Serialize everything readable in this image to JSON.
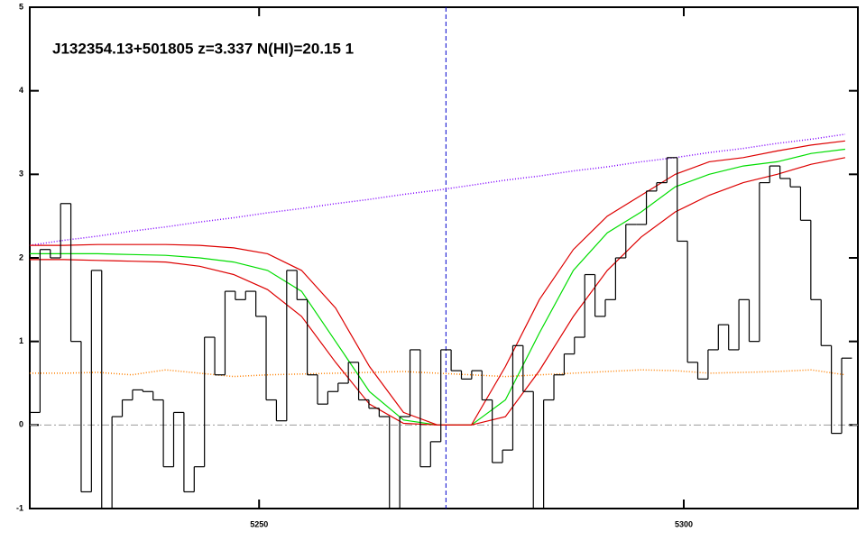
{
  "chart_data": {
    "type": "line",
    "title": "J132354.13+501805 z=3.337 N(HI)=20.15 1",
    "xlim": [
      5223.0,
      5320.5
    ],
    "ylim": [
      -1,
      5
    ],
    "xticks": [
      5250,
      5300
    ],
    "yticks": [
      -1,
      0,
      1,
      2,
      3,
      4,
      5
    ],
    "spectrum": {
      "color": "#000000",
      "bins": [
        5223.0,
        5224.21,
        5225.42,
        5226.63,
        5227.84,
        5229.05,
        5230.26,
        5231.47,
        5232.68,
        5233.89,
        5235.1,
        5236.31,
        5237.52,
        5238.73,
        5239.94,
        5241.15,
        5242.36,
        5243.57,
        5244.78,
        5245.99,
        5247.2,
        5248.41,
        5249.62,
        5250.83,
        5252.04,
        5253.25,
        5254.46,
        5255.67,
        5256.88,
        5258.09,
        5259.3,
        5260.51,
        5261.72,
        5262.93,
        5264.14,
        5265.35,
        5266.56,
        5267.77,
        5268.98,
        5270.19,
        5271.4,
        5272.61,
        5273.82,
        5275.03,
        5276.24,
        5277.45,
        5278.66,
        5279.87,
        5281.08,
        5282.29,
        5283.5,
        5284.71,
        5285.92,
        5287.13,
        5288.34,
        5289.55,
        5290.76,
        5291.97,
        5293.18,
        5294.39,
        5295.6,
        5296.81,
        5298.02,
        5299.23,
        5300.44,
        5301.65,
        5302.86,
        5304.07,
        5305.28,
        5306.49,
        5307.7,
        5308.91,
        5310.12,
        5311.33,
        5312.54,
        5313.75,
        5314.96,
        5316.17,
        5317.38,
        5318.59,
        5319.8
      ],
      "values": [
        0.15,
        2.1,
        2.0,
        2.65,
        1.0,
        -0.8,
        1.85,
        -1.0,
        0.1,
        0.3,
        0.42,
        0.4,
        0.3,
        -0.5,
        0.15,
        -0.8,
        -0.5,
        1.05,
        0.6,
        1.6,
        1.5,
        1.6,
        1.3,
        0.3,
        0.05,
        1.85,
        1.5,
        0.6,
        0.25,
        0.4,
        0.5,
        0.75,
        0.3,
        0.2,
        0.1,
        -1.0,
        0.1,
        0.9,
        -0.5,
        -0.2,
        0.9,
        0.65,
        0.55,
        0.65,
        0.3,
        -0.45,
        -0.3,
        0.95,
        0.4,
        -1.0,
        0.3,
        0.6,
        0.85,
        1.05,
        1.8,
        1.3,
        1.5,
        2.0,
        2.4,
        2.4,
        2.8,
        2.9,
        3.2,
        2.2,
        0.75,
        0.55,
        0.9,
        1.2,
        0.9,
        1.5,
        1.0,
        2.9,
        3.1,
        2.95,
        2.85,
        2.45,
        1.5,
        0.95,
        -0.1,
        0.8
      ]
    },
    "x": [
      5223,
      5227,
      5231,
      5235,
      5239,
      5243,
      5247,
      5251,
      5255,
      5259,
      5263,
      5267,
      5271,
      5275,
      5279,
      5283,
      5287,
      5291,
      5295,
      5299,
      5303,
      5307,
      5311,
      5315,
      5319
    ],
    "series": [
      {
        "color": "#ff8000",
        "style": "dotted",
        "values": [
          0.62,
          0.62,
          0.63,
          0.6,
          0.66,
          0.62,
          0.58,
          0.6,
          0.61,
          0.62,
          0.63,
          0.64,
          0.62,
          0.6,
          0.58,
          0.6,
          0.62,
          0.64,
          0.66,
          0.65,
          0.62,
          0.63,
          0.64,
          0.66,
          0.6
        ]
      },
      {
        "color": "#8000ff",
        "style": "dotted",
        "values": [
          2.15,
          2.21,
          2.26,
          2.32,
          2.37,
          2.43,
          2.48,
          2.54,
          2.59,
          2.65,
          2.7,
          2.76,
          2.81,
          2.87,
          2.93,
          2.98,
          3.04,
          3.09,
          3.15,
          3.2,
          3.26,
          3.31,
          3.37,
          3.42,
          3.48
        ]
      },
      {
        "color": "#00dd00",
        "style": "solid",
        "values": [
          2.05,
          2.05,
          2.05,
          2.04,
          2.03,
          2.0,
          1.95,
          1.85,
          1.6,
          1.0,
          0.4,
          0.06,
          0.0,
          0.0,
          0.3,
          1.1,
          1.85,
          2.3,
          2.55,
          2.85,
          3.0,
          3.1,
          3.15,
          3.25,
          3.3
        ]
      },
      {
        "color": "#dd0000",
        "style": "solid",
        "values": [
          2.15,
          2.15,
          2.16,
          2.16,
          2.16,
          2.15,
          2.12,
          2.05,
          1.85,
          1.4,
          0.7,
          0.15,
          0.0,
          0.0,
          0.7,
          1.5,
          2.1,
          2.5,
          2.75,
          3.0,
          3.15,
          3.2,
          3.28,
          3.35,
          3.4
        ]
      },
      {
        "color": "#dd0000",
        "style": "solid",
        "values": [
          1.98,
          1.98,
          1.97,
          1.96,
          1.95,
          1.9,
          1.8,
          1.62,
          1.3,
          0.75,
          0.25,
          0.02,
          0.0,
          0.0,
          0.1,
          0.65,
          1.3,
          1.85,
          2.25,
          2.55,
          2.75,
          2.9,
          3.0,
          3.12,
          3.2
        ]
      }
    ],
    "vline": {
      "value": 5272,
      "color": "#0000cc"
    },
    "hline": {
      "value": 0,
      "color": "#999999"
    }
  }
}
